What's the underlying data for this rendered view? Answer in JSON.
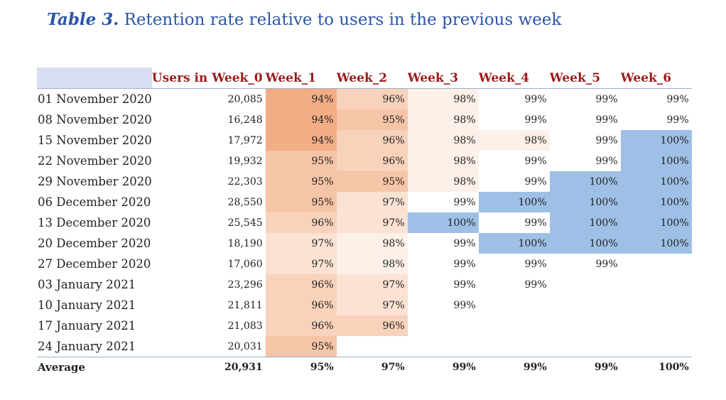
{
  "title": {
    "label": "Table 3.",
    "text": "Retention rate relative to users in the previous week"
  },
  "headers": [
    "Users in Week_0",
    "Week_1",
    "Week_2",
    "Week_3",
    "Week_4",
    "Week_5",
    "Week_6"
  ],
  "colors": {
    "title": "#2c54a8",
    "header_text": "#9b1c1c",
    "header_corner": "#d9def3",
    "high_retention": "#9fc0e6",
    "heat_94": "#f2ad85",
    "heat_95": "#f6c4a6",
    "heat_96": "#f8d2bb",
    "heat_97": "#fbe2d3",
    "heat_98": "#fdf0e8"
  },
  "rows": [
    {
      "date": "01 November 2020",
      "users": "20,085",
      "rates": [
        "94%",
        "96%",
        "98%",
        "99%",
        "99%",
        "99%"
      ]
    },
    {
      "date": "08 November 2020",
      "users": "16,248",
      "rates": [
        "94%",
        "95%",
        "98%",
        "99%",
        "99%",
        "99%"
      ]
    },
    {
      "date": "15 November 2020",
      "users": "17,972",
      "rates": [
        "94%",
        "96%",
        "98%",
        "98%",
        "99%",
        "100%"
      ]
    },
    {
      "date": "22 November 2020",
      "users": "19,932",
      "rates": [
        "95%",
        "96%",
        "98%",
        "99%",
        "99%",
        "100%"
      ]
    },
    {
      "date": "29 November 2020",
      "users": "22,303",
      "rates": [
        "95%",
        "95%",
        "98%",
        "99%",
        "100%",
        "100%"
      ]
    },
    {
      "date": "06 December 2020",
      "users": "28,550",
      "rates": [
        "95%",
        "97%",
        "99%",
        "100%",
        "100%",
        "100%"
      ]
    },
    {
      "date": "13 December 2020",
      "users": "25,545",
      "rates": [
        "96%",
        "97%",
        "100%",
        "99%",
        "100%",
        "100%"
      ]
    },
    {
      "date": "20 December 2020",
      "users": "18,190",
      "rates": [
        "97%",
        "98%",
        "99%",
        "100%",
        "100%",
        "100%"
      ]
    },
    {
      "date": "27 December 2020",
      "users": "17,060",
      "rates": [
        "97%",
        "98%",
        "99%",
        "99%",
        "99%",
        ""
      ]
    },
    {
      "date": "03 January 2021",
      "users": "23,296",
      "rates": [
        "96%",
        "97%",
        "99%",
        "99%",
        "",
        ""
      ]
    },
    {
      "date": "10 January 2021",
      "users": "21,811",
      "rates": [
        "96%",
        "97%",
        "99%",
        "",
        "",
        ""
      ]
    },
    {
      "date": "17 January 2021",
      "users": "21,083",
      "rates": [
        "96%",
        "96%",
        "",
        "",
        "",
        ""
      ]
    },
    {
      "date": "24 January 2021",
      "users": "20,031",
      "rates": [
        "95%",
        "",
        "",
        "",
        "",
        ""
      ]
    }
  ],
  "average": {
    "label": "Average",
    "users": "20,931",
    "rates": [
      "95%",
      "97%",
      "99%",
      "99%",
      "99%",
      "100%"
    ]
  }
}
